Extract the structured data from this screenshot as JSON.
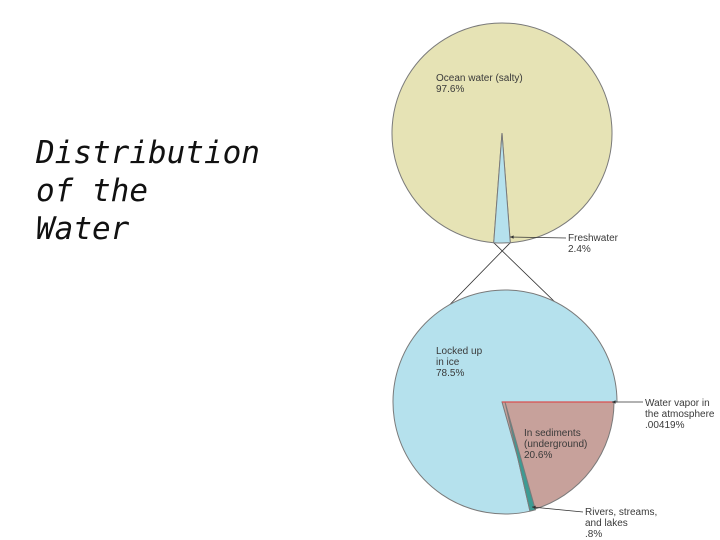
{
  "slide": {
    "title_lines": [
      "Distribution",
      "of the",
      "Water"
    ]
  },
  "colors": {
    "ocean": "#e6e3b5",
    "freshwater": "#b5e1ed",
    "ice": "#b5e1ed",
    "sediments": "#c7a19b",
    "rivers": "#3c9b93",
    "vapor": "#d94f4f",
    "outline": "#7a7a7a",
    "leader": "#333333"
  },
  "chart_data": [
    {
      "type": "pie",
      "slices": [
        {
          "label_lines": [
            "Ocean water (salty)",
            "97.6%"
          ],
          "value": 97.6,
          "color_key": "ocean"
        },
        {
          "label_lines": [
            "Freshwater",
            "2.4%"
          ],
          "value": 2.4,
          "color_key": "freshwater"
        }
      ]
    },
    {
      "type": "pie",
      "slices": [
        {
          "label_lines": [
            "Locked up",
            "in ice",
            "78.5%"
          ],
          "value": 78.5,
          "color_key": "ice"
        },
        {
          "label_lines": [
            "In sediments",
            "(underground)",
            "20.6%"
          ],
          "value": 20.6,
          "color_key": "sediments"
        },
        {
          "label_lines": [
            "Water vapor in",
            "the atmosphere",
            ".00419%"
          ],
          "value": 0.00419,
          "color_key": "vapor"
        },
        {
          "label_lines": [
            "Rivers, streams,",
            "and lakes",
            ".8%"
          ],
          "value": 0.8,
          "color_key": "rivers"
        }
      ]
    }
  ]
}
